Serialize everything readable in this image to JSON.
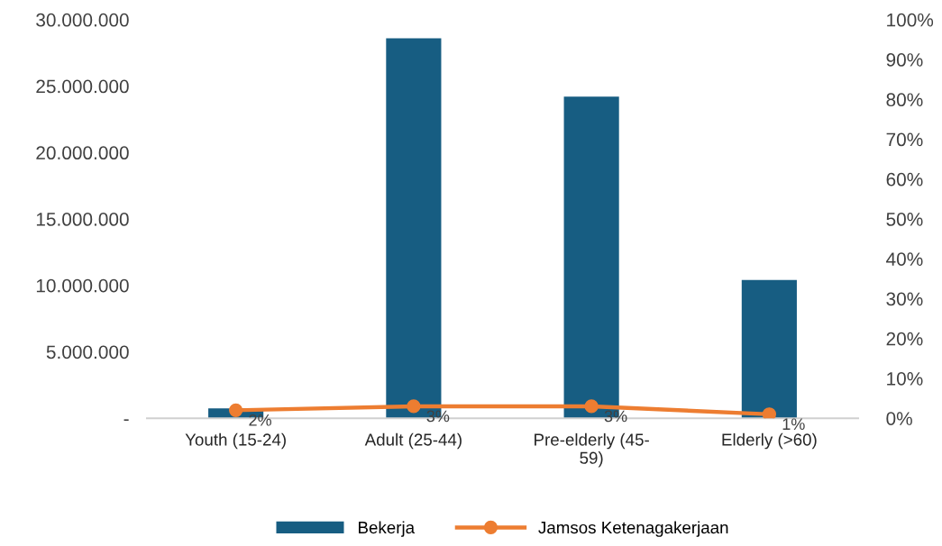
{
  "chart_data": {
    "type": "bar",
    "categories": [
      "Youth (15-24)",
      "Adult (25-44)",
      "Pre-elderly (45-59)",
      "Elderly (>60)"
    ],
    "series": [
      {
        "name": "Bekerja",
        "color": "#175d82",
        "values": [
          750000,
          28600000,
          24200000,
          10400000
        ]
      },
      {
        "name": "Jamsos Ketenagakerjaan",
        "type": "line",
        "axis": "y2",
        "color": "#ed7d31",
        "values": [
          2,
          3,
          3,
          1
        ],
        "value_labels": [
          "2%",
          "3%",
          "3%",
          "1%"
        ]
      }
    ],
    "ylim": [
      0,
      30000000
    ],
    "yticks": [
      {
        "value": 0,
        "label": "-"
      },
      {
        "value": 5000000,
        "label": "5.000.000"
      },
      {
        "value": 10000000,
        "label": "10.000.000"
      },
      {
        "value": 15000000,
        "label": "15.000.000"
      },
      {
        "value": 20000000,
        "label": "20.000.000"
      },
      {
        "value": 25000000,
        "label": "25.000.000"
      },
      {
        "value": 30000000,
        "label": "30.000.000"
      }
    ],
    "y2lim": [
      0,
      100
    ],
    "y2ticks": [
      {
        "value": 0,
        "label": "0%"
      },
      {
        "value": 10,
        "label": "10%"
      },
      {
        "value": 20,
        "label": "20%"
      },
      {
        "value": 30,
        "label": "30%"
      },
      {
        "value": 40,
        "label": "40%"
      },
      {
        "value": 50,
        "label": "50%"
      },
      {
        "value": 60,
        "label": "60%"
      },
      {
        "value": 70,
        "label": "70%"
      },
      {
        "value": 80,
        "label": "80%"
      },
      {
        "value": 90,
        "label": "90%"
      },
      {
        "value": 100,
        "label": "100%"
      }
    ],
    "marker": "circle",
    "line_style": "solid",
    "legend": "bottom",
    "grid": false
  }
}
